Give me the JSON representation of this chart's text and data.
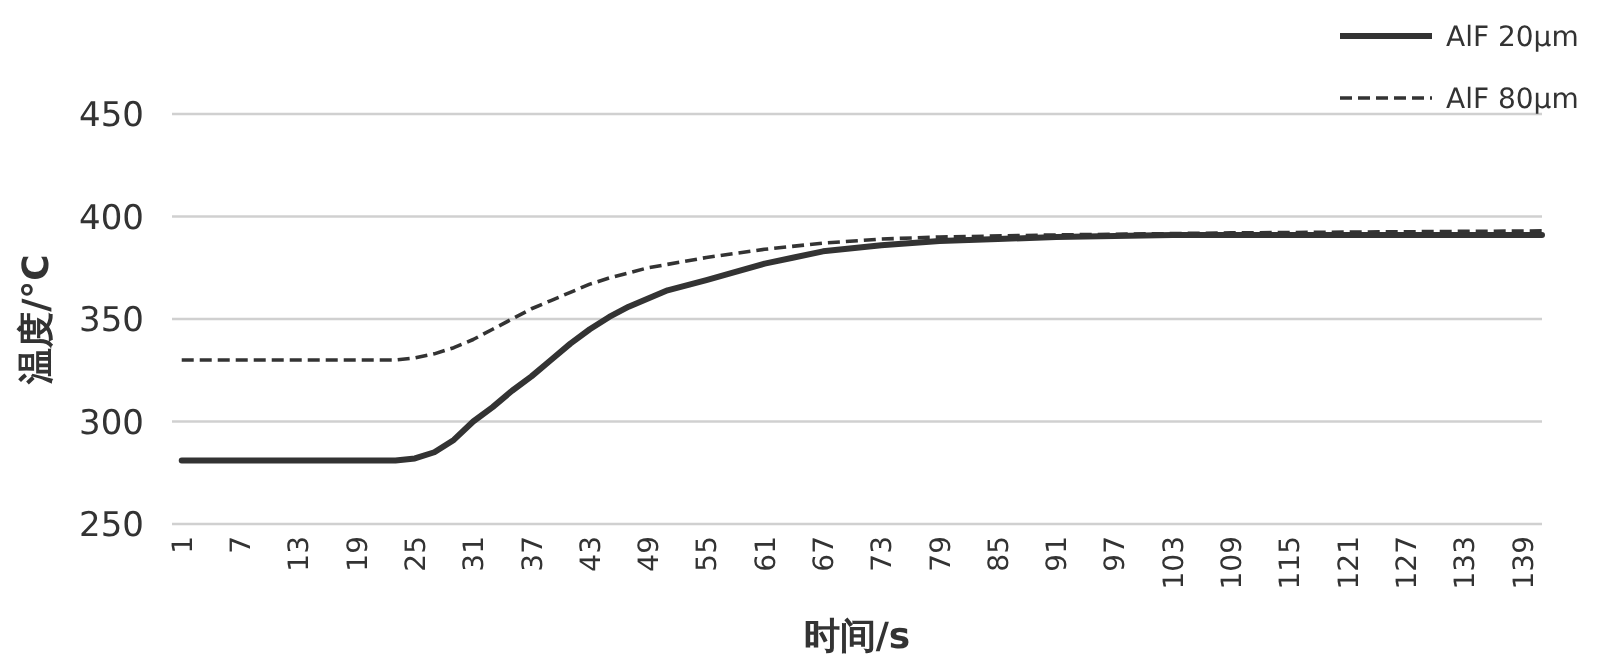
{
  "chart_data": {
    "type": "line",
    "xlabel": "时间/s",
    "ylabel": "温度/°C",
    "xlim": [
      0,
      141
    ],
    "xticks": [
      1,
      7,
      13,
      19,
      25,
      31,
      37,
      43,
      49,
      55,
      61,
      67,
      73,
      79,
      85,
      91,
      97,
      103,
      109,
      115,
      121,
      127,
      133,
      139
    ],
    "ylim": [
      250,
      450
    ],
    "yticks": [
      250,
      300,
      350,
      400,
      450
    ],
    "grid": "y",
    "legend": "top right",
    "series": [
      {
        "name": "AlF 20μm",
        "color": "#333333",
        "line_style": "solid",
        "x": [
          1,
          10,
          20,
          23,
          25,
          27,
          29,
          31,
          33,
          35,
          37,
          39,
          41,
          43,
          45,
          47,
          49,
          51,
          55,
          58,
          61,
          64,
          67,
          73,
          79,
          85,
          91,
          103,
          121,
          141
        ],
        "values": [
          281,
          281,
          281,
          281,
          282,
          285,
          291,
          300,
          307,
          315,
          322,
          330,
          338,
          345,
          351,
          356,
          360,
          364,
          369,
          373,
          377,
          380,
          383,
          386,
          388,
          389,
          390,
          391,
          391,
          391
        ]
      },
      {
        "name": "AlF 80μm",
        "color": "#333333",
        "line_style": "dashed",
        "x": [
          1,
          10,
          20,
          23,
          25,
          27,
          29,
          31,
          33,
          35,
          37,
          39,
          41,
          43,
          45,
          49,
          55,
          61,
          67,
          73,
          79,
          91,
          109,
          141
        ],
        "values": [
          330,
          330,
          330,
          330,
          331,
          333,
          336,
          340,
          345,
          350,
          355,
          359,
          363,
          367,
          370,
          375,
          380,
          384,
          387,
          389,
          390,
          391,
          392,
          393
        ]
      }
    ]
  }
}
